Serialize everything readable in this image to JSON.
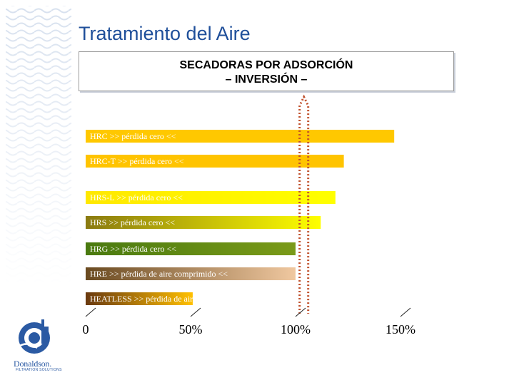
{
  "title": "Tratamiento  del Aire",
  "subtitle": {
    "line1": "SECADORAS POR ADSORCIÓN",
    "line2": "– INVERSIÓN –"
  },
  "logo": {
    "name": "Donaldson.",
    "tagline": "FILTRATION SOLUTIONS"
  },
  "chart_data": {
    "type": "bar",
    "orientation": "horizontal",
    "categories": [
      "HRC  >> pérdida cero <<",
      "HRC-T  >> pérdida cero  <<",
      "HRS-L  >> pérdida cero <<",
      "HRS >> pérdida cero <<",
      "HRG  >> pérdida cero <<",
      "HRE  >> pérdida de aire comprimido <<",
      "HEATLESS >> pérdida de aire comprimido <<"
    ],
    "values": [
      147,
      123,
      119,
      112,
      100,
      100,
      51
    ],
    "xlim": [
      0,
      150
    ],
    "xticks": [
      0,
      50,
      100,
      150
    ],
    "tick_labels": [
      "0",
      "50%",
      "100%",
      "150%"
    ],
    "reference_line": 105,
    "bar_colors": [
      [
        "#ffc800",
        "#ffc800"
      ],
      [
        "#ffc400",
        "#ffc400"
      ],
      [
        "#ffe800",
        "#ffff00"
      ],
      [
        "#8a7a10",
        "#ffff00"
      ],
      [
        "#4a7a10",
        "#7a9a18"
      ],
      [
        "#6a4a20",
        "#f0c8a0"
      ],
      [
        "#6a3a10",
        "#ffc000"
      ]
    ],
    "reference_color": "#c0502c",
    "grid": false,
    "legend": "none"
  }
}
